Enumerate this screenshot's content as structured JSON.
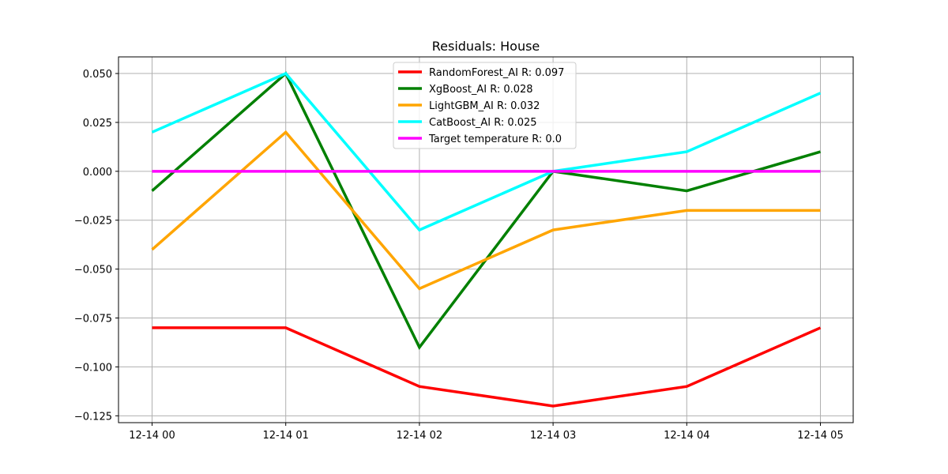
{
  "chart_data": {
    "type": "line",
    "title": "Residuals: House",
    "xlabel": "",
    "ylabel": "",
    "categories": [
      "12-14 00",
      "12-14 01",
      "12-14 02",
      "12-14 03",
      "12-14 04",
      "12-14 05"
    ],
    "ylim": [
      -0.1285,
      0.0585
    ],
    "yticks": [
      0.05,
      0.025,
      0.0,
      -0.025,
      -0.05,
      -0.075,
      -0.1,
      -0.125
    ],
    "ytick_labels": [
      "0.050",
      "0.025",
      "0.000",
      "−0.025",
      "−0.050",
      "−0.075",
      "−0.100",
      "−0.125"
    ],
    "grid": true,
    "legend_position": "top-center",
    "series": [
      {
        "name": "RandomForest_AI R: 0.097",
        "color": "#ff0000",
        "values": [
          -0.08,
          -0.08,
          -0.11,
          -0.12,
          -0.11,
          -0.08
        ]
      },
      {
        "name": "XgBoost_AI R: 0.028",
        "color": "#008000",
        "values": [
          -0.01,
          0.05,
          -0.09,
          0.0,
          -0.01,
          0.01
        ]
      },
      {
        "name": "LightGBM_AI R: 0.032",
        "color": "#ffa500",
        "values": [
          -0.04,
          0.02,
          -0.06,
          -0.03,
          -0.02,
          -0.02
        ]
      },
      {
        "name": "CatBoost_AI R: 0.025",
        "color": "#00ffff",
        "values": [
          0.02,
          0.05,
          -0.03,
          0.0,
          0.01,
          0.04
        ]
      },
      {
        "name": "Target temperature R: 0.0",
        "color": "#ff00ff",
        "values": [
          0.0,
          0.0,
          0.0,
          0.0,
          0.0,
          0.0
        ]
      }
    ]
  }
}
